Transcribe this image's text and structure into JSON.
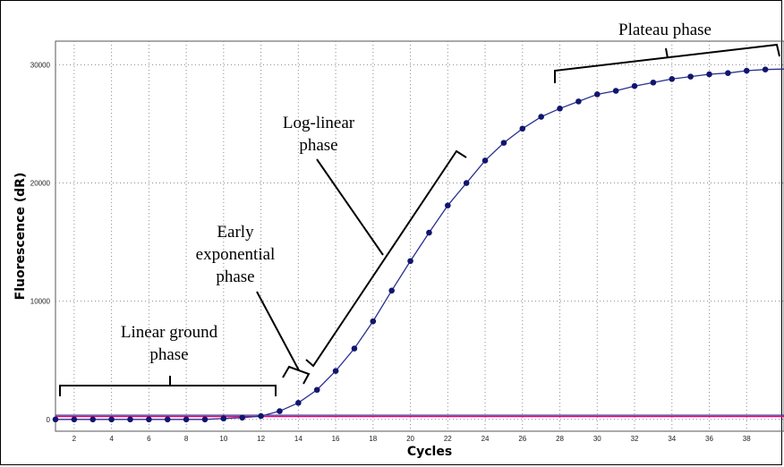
{
  "chart_data": {
    "type": "line",
    "xlabel": "Cycles",
    "ylabel": "Fluorescence (dR)",
    "xlim": [
      1,
      40
    ],
    "ylim": [
      -1000,
      32000
    ],
    "x_ticks": [
      2,
      4,
      6,
      8,
      10,
      12,
      14,
      16,
      18,
      20,
      22,
      24,
      26,
      28,
      30,
      32,
      34,
      36,
      38
    ],
    "y_ticks": [
      0,
      10000,
      20000,
      30000
    ],
    "grid": true,
    "series": [
      {
        "name": "",
        "color": "#2a2f8f",
        "marker_color": "#10166e",
        "x": [
          1,
          2,
          3,
          4,
          5,
          6,
          7,
          8,
          9,
          10,
          11,
          12,
          13,
          14,
          15,
          16,
          17,
          18,
          19,
          20,
          21,
          22,
          23,
          24,
          25,
          26,
          27,
          28,
          29,
          30,
          31,
          32,
          33,
          34,
          35,
          36,
          37,
          38,
          39
        ],
        "y": [
          0,
          0,
          0,
          0,
          0,
          0,
          0,
          0,
          0,
          80,
          150,
          280,
          700,
          1400,
          2500,
          4100,
          6000,
          8300,
          10900,
          13400,
          15800,
          18100,
          20000,
          21900,
          23400,
          24600,
          25600,
          26300,
          26900,
          27500,
          27800,
          28200,
          28500,
          28800,
          29000,
          29200,
          29300,
          29500,
          29600
        ]
      }
    ],
    "threshold": {
      "y": 250,
      "color": "#e8007a"
    },
    "annotations": [
      {
        "lines": [
          "Linear ground",
          "phase"
        ]
      },
      {
        "lines": [
          "Early",
          "exponential",
          "phase"
        ]
      },
      {
        "lines": [
          "Log-linear",
          "phase"
        ]
      },
      {
        "lines": [
          "Plateau phase"
        ]
      }
    ]
  }
}
